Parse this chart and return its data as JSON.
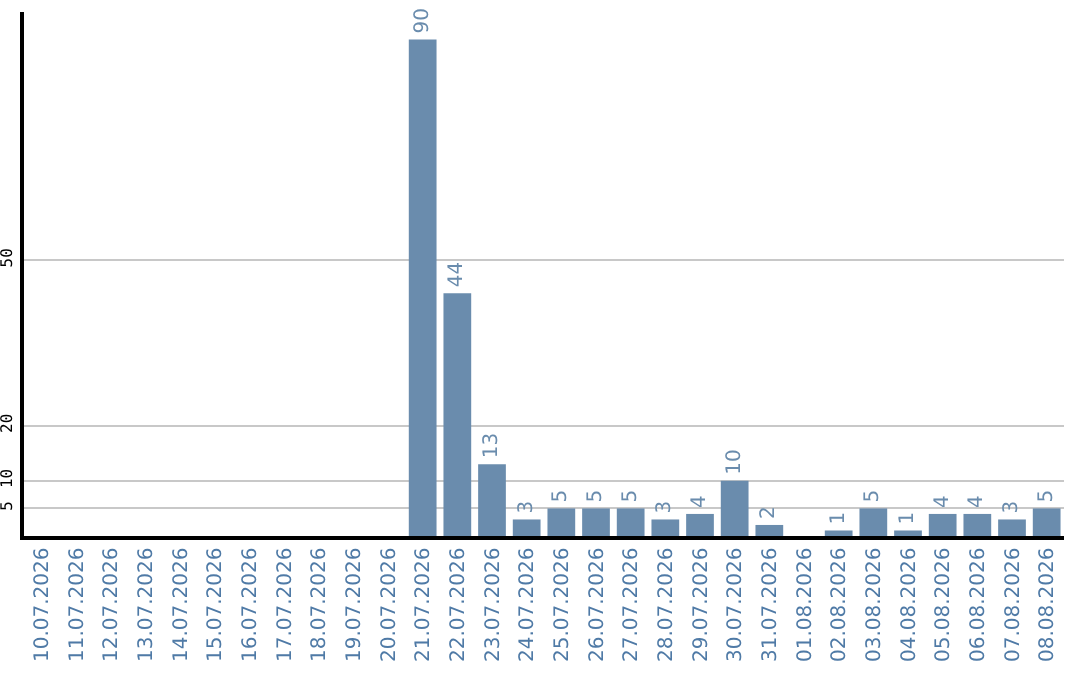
{
  "chart_data": {
    "type": "bar",
    "categories": [
      "10.07.2026",
      "11.07.2026",
      "12.07.2026",
      "13.07.2026",
      "14.07.2026",
      "15.07.2026",
      "16.07.2026",
      "17.07.2026",
      "18.07.2026",
      "19.07.2026",
      "20.07.2026",
      "21.07.2026",
      "22.07.2026",
      "23.07.2026",
      "24.07.2026",
      "25.07.2026",
      "26.07.2026",
      "27.07.2026",
      "28.07.2026",
      "29.07.2026",
      "30.07.2026",
      "31.07.2026",
      "01.08.2026",
      "02.08.2026",
      "03.08.2026",
      "04.08.2026",
      "05.08.2026",
      "06.08.2026",
      "07.08.2026",
      "08.08.2026"
    ],
    "values": [
      null,
      null,
      null,
      null,
      null,
      null,
      null,
      null,
      null,
      null,
      null,
      90,
      44,
      13,
      3,
      5,
      5,
      5,
      3,
      4,
      10,
      2,
      null,
      1,
      5,
      1,
      4,
      4,
      3,
      5
    ],
    "color": "#6a8cad",
    "ylim": [
      0,
      95
    ],
    "yticks": [
      5,
      10,
      20,
      50
    ],
    "grid": "y",
    "data_labels": true,
    "legend": false
  }
}
